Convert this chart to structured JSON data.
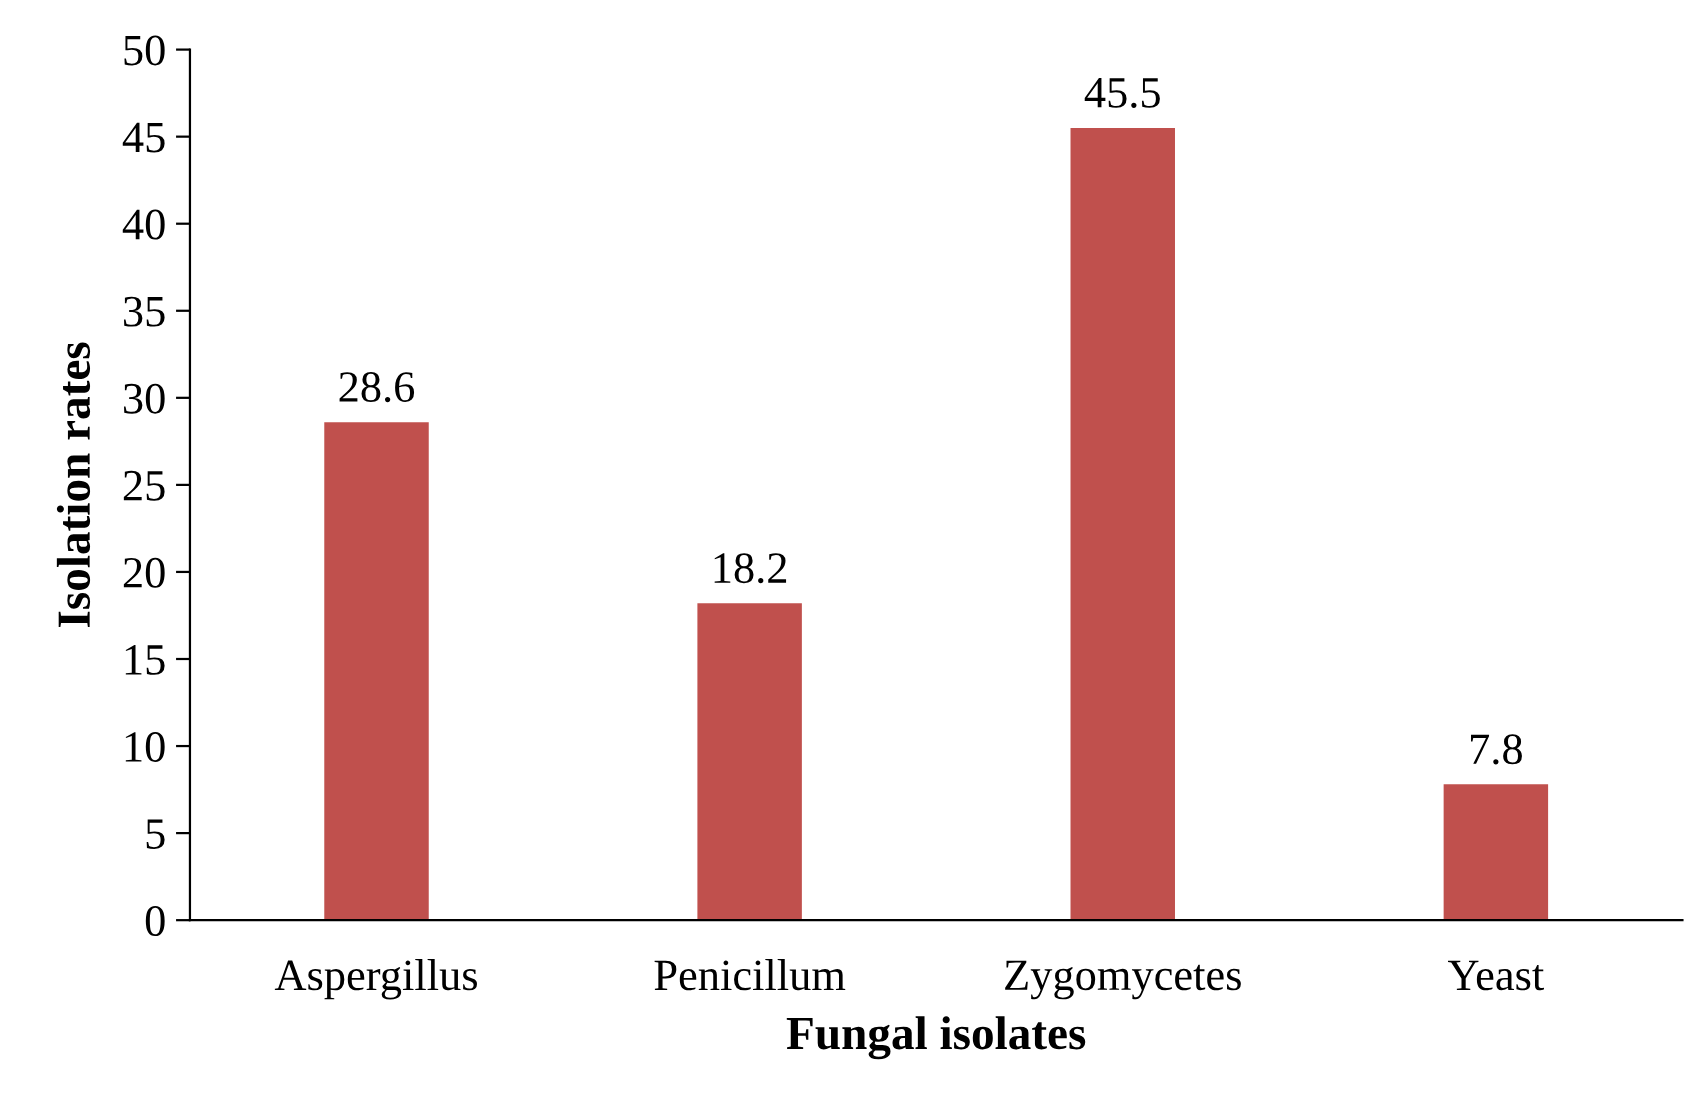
{
  "chart_data": {
    "type": "bar",
    "xlabel": "Fungal isolates",
    "ylabel": "Isolation rates",
    "categories": [
      "Aspergillus",
      "Penicillum",
      "Zygomycetes",
      "Yeast"
    ],
    "values": [
      28.6,
      18.2,
      45.5,
      7.8
    ],
    "color": "#c0504d",
    "ylim": [
      0,
      50
    ],
    "yticks": [
      0,
      5,
      10,
      15,
      20,
      25,
      30,
      35,
      40,
      45,
      50
    ],
    "grid": false,
    "data_labels": true
  }
}
